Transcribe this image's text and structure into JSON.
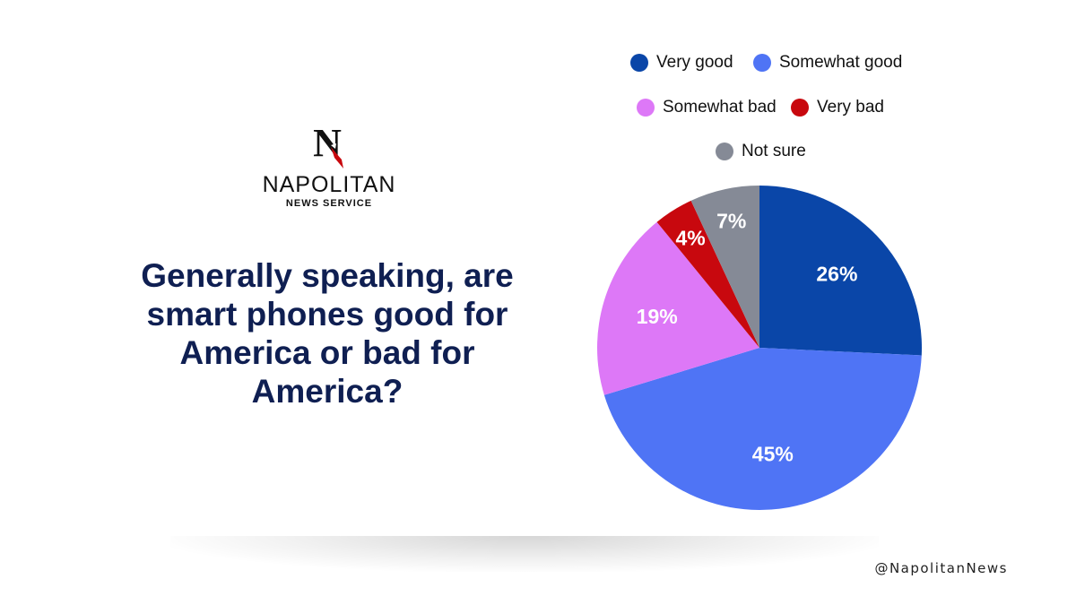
{
  "brand": {
    "name": "NAPOLITAN",
    "subtitle": "NEWS SERVICE",
    "logo_letter": "N"
  },
  "question": "Generally speaking, are smart phones good for America or bad for America?",
  "social_handle": "@NapolitanNews",
  "colors": {
    "very_good": "#0a46a8",
    "somewhat_good": "#4f74f5",
    "somewhat_bad": "#dd78f7",
    "very_bad": "#c8080e",
    "not_sure": "#858a96",
    "title": "#0f1f52"
  },
  "chart_data": {
    "type": "pie",
    "title": "",
    "legend_position": "top",
    "slices": [
      {
        "name": "Very good",
        "value": 26,
        "label": "26%",
        "color": "#0a46a8"
      },
      {
        "name": "Somewhat good",
        "value": 45,
        "label": "45%",
        "color": "#4f74f5"
      },
      {
        "name": "Somewhat bad",
        "value": 19,
        "label": "19%",
        "color": "#dd78f7"
      },
      {
        "name": "Very bad",
        "value": 4,
        "label": "4%",
        "color": "#c8080e"
      },
      {
        "name": "Not sure",
        "value": 7,
        "label": "7%",
        "color": "#858a96"
      }
    ]
  }
}
